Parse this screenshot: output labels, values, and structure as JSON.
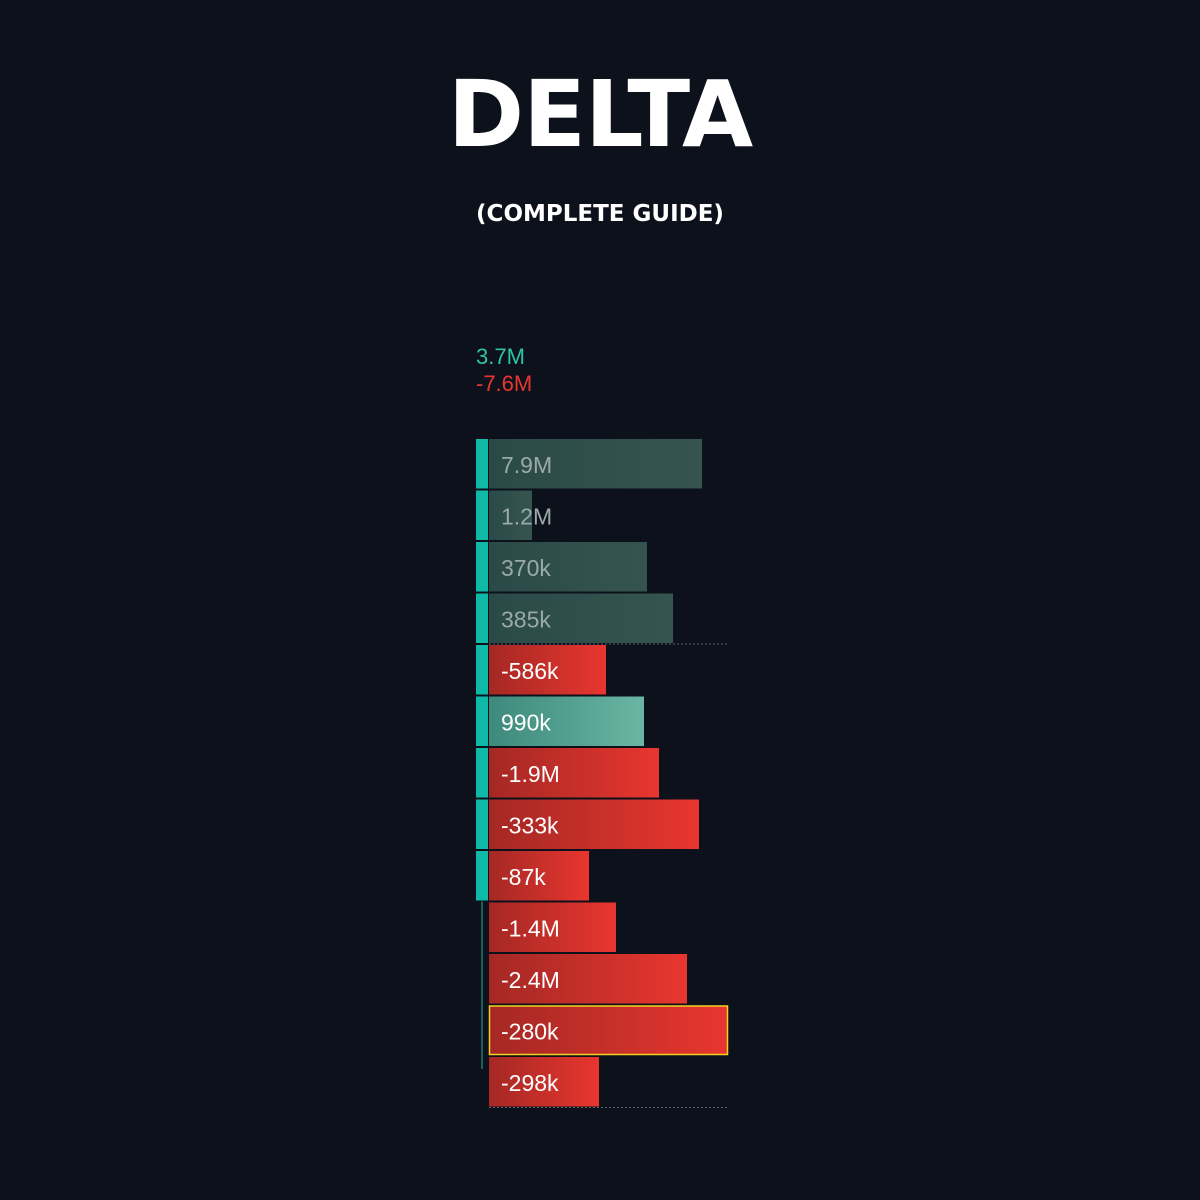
{
  "title": "DELTA",
  "subtitle": "(COMPLETE GUIDE)",
  "colors": {
    "background": "#0c111b",
    "positive_text": "#2ec4a6",
    "negative_text": "#e8362f",
    "cluster_bar": "#0fb9a8",
    "highlight_border": "#f2d21e"
  },
  "summary": {
    "buy_volume": "3.7M",
    "sell_volume": "-7.6M"
  },
  "chart_data": {
    "type": "bar",
    "orientation": "horizontal",
    "rows": [
      {
        "label": "7.9M",
        "value": 7900000,
        "bar_fraction": 0.89,
        "style": "muted-green"
      },
      {
        "label": "1.2M",
        "value": 1200000,
        "bar_fraction": 0.18,
        "style": "muted-green"
      },
      {
        "label": "370k",
        "value": 370000,
        "bar_fraction": 0.66,
        "style": "muted-green"
      },
      {
        "label": "385k",
        "value": 385000,
        "bar_fraction": 0.77,
        "style": "muted-green"
      },
      {
        "label": "-586k",
        "value": -586000,
        "bar_fraction": 0.49,
        "style": "red"
      },
      {
        "label": "990k",
        "value": 990000,
        "bar_fraction": 0.65,
        "style": "bright-green"
      },
      {
        "label": "-1.9M",
        "value": -1900000,
        "bar_fraction": 0.71,
        "style": "red"
      },
      {
        "label": "-333k",
        "value": -333000,
        "bar_fraction": 0.88,
        "style": "red"
      },
      {
        "label": "-87k",
        "value": -87000,
        "bar_fraction": 0.42,
        "style": "red"
      },
      {
        "label": "-1.4M",
        "value": -1400000,
        "bar_fraction": 0.53,
        "style": "red"
      },
      {
        "label": "-2.4M",
        "value": -2400000,
        "bar_fraction": 0.83,
        "style": "red"
      },
      {
        "label": "-280k",
        "value": -280000,
        "bar_fraction": 1.0,
        "style": "red",
        "highlighted": true
      },
      {
        "label": "-298k",
        "value": -298000,
        "bar_fraction": 0.46,
        "style": "red"
      }
    ],
    "cluster_levels": 9,
    "dashed_separators_after_rows": [
      3,
      12
    ]
  }
}
